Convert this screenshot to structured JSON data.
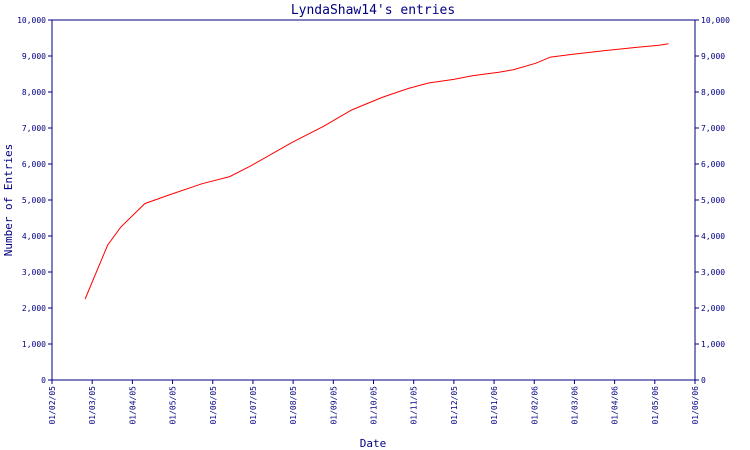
{
  "chart_data": {
    "type": "line",
    "title": "LyndaShaw14's entries",
    "xlabel": "Date",
    "ylabel": "Number of Entries",
    "x_tick_labels": [
      "01/02/05",
      "01/03/05",
      "01/04/05",
      "01/05/05",
      "01/06/05",
      "01/07/05",
      "01/08/05",
      "01/09/05",
      "01/10/05",
      "01/11/05",
      "01/12/05",
      "01/01/06",
      "01/02/06",
      "01/03/06",
      "01/04/06",
      "01/05/06",
      "01/06/06"
    ],
    "y_ticks": [
      0,
      1000,
      2000,
      3000,
      4000,
      5000,
      6000,
      7000,
      8000,
      9000,
      10000
    ],
    "y_tick_labels": [
      "0",
      "1,000",
      "2,000",
      "3,000",
      "4,000",
      "5,000",
      "6,000",
      "7,000",
      "8,000",
      "9,000",
      "10,000"
    ],
    "ylim": [
      0,
      10000
    ],
    "xlim": [
      "2005-02-01",
      "2006-06-01"
    ],
    "grid": false,
    "series": [
      {
        "color": "#ff0000",
        "points": [
          {
            "x": "2005-02-26",
            "y": 2250
          },
          {
            "x": "2005-03-15",
            "y": 3750
          },
          {
            "x": "2005-03-25",
            "y": 4250
          },
          {
            "x": "2005-04-12",
            "y": 4900
          },
          {
            "x": "2005-05-01",
            "y": 5150
          },
          {
            "x": "2005-05-25",
            "y": 5450
          },
          {
            "x": "2005-06-15",
            "y": 5650
          },
          {
            "x": "2005-07-01",
            "y": 5950
          },
          {
            "x": "2005-08-01",
            "y": 6600
          },
          {
            "x": "2005-08-25",
            "y": 7050
          },
          {
            "x": "2005-09-15",
            "y": 7500
          },
          {
            "x": "2005-10-08",
            "y": 7850
          },
          {
            "x": "2005-10-28",
            "y": 8100
          },
          {
            "x": "2005-11-12",
            "y": 8250
          },
          {
            "x": "2005-12-01",
            "y": 8350
          },
          {
            "x": "2005-12-15",
            "y": 8450
          },
          {
            "x": "2006-01-04",
            "y": 8550
          },
          {
            "x": "2006-01-15",
            "y": 8620
          },
          {
            "x": "2006-02-01",
            "y": 8800
          },
          {
            "x": "2006-02-12",
            "y": 8970
          },
          {
            "x": "2006-03-01",
            "y": 9050
          },
          {
            "x": "2006-03-25",
            "y": 9150
          },
          {
            "x": "2006-04-15",
            "y": 9230
          },
          {
            "x": "2006-05-05",
            "y": 9300
          },
          {
            "x": "2006-05-12",
            "y": 9340
          }
        ]
      }
    ],
    "colors": {
      "axis": "#000080",
      "line": "#ff0000",
      "background": "#ffffff"
    }
  }
}
